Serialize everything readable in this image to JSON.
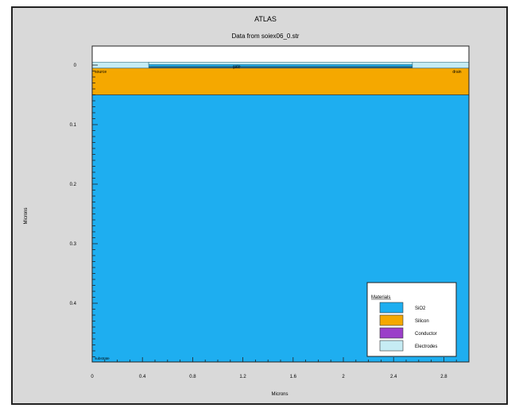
{
  "chart_data": {
    "type": "area",
    "title": "ATLAS",
    "subtitle": "Data from soiex06_0.str",
    "xlabel": "Microns",
    "ylabel": "Microns",
    "xlim": [
      0,
      3.0
    ],
    "ylim": [
      0,
      0.5
    ],
    "x_ticks": [
      0,
      0.4,
      0.8,
      1.2,
      1.6,
      2,
      2.4,
      2.8
    ],
    "x_tick_labels": [
      "0",
      "0.4",
      "0.8",
      "1.2",
      "1.6",
      "2",
      "2.4",
      "2.8"
    ],
    "y_ticks": [
      0,
      0.1,
      0.2,
      0.3,
      0.4
    ],
    "y_tick_labels": [
      "0",
      "0.1",
      "0.2",
      "0.3",
      "0.4"
    ],
    "y_inverted": true,
    "grid": false,
    "colors": {
      "SiO2": "#1eaef0",
      "Silicon": "#f5a800",
      "Conductor": "#9b3fc9",
      "Electrodes": "#c6ecf4",
      "background": "#ffffff"
    },
    "regions": [
      {
        "material": "SiO2",
        "x": [
          0,
          3.0
        ],
        "y": [
          -0.002,
          0.005
        ]
      },
      {
        "material": "Silicon",
        "x": [
          0,
          3.0
        ],
        "y": [
          0.005,
          0.05
        ]
      },
      {
        "material": "SiO2",
        "x": [
          0,
          3.0
        ],
        "y": [
          0.05,
          0.5
        ]
      }
    ],
    "electrodes": [
      {
        "name": "source",
        "x": [
          0,
          0.45
        ],
        "y": [
          -0.005,
          0.005
        ]
      },
      {
        "name": "gate",
        "x": [
          0.45,
          2.55
        ],
        "y": [
          -0.005,
          -0.001
        ]
      },
      {
        "name": "drain",
        "x": [
          2.55,
          3.0
        ],
        "y": [
          -0.005,
          0.005
        ]
      }
    ],
    "electrode_labels": [
      "source",
      "gate",
      "drain"
    ],
    "substrate_label": "substrate",
    "legend": {
      "title": "Materials",
      "position": "bottom-right",
      "entries": [
        "SiO2",
        "Silicon",
        "Conductor",
        "Electrodes"
      ]
    }
  }
}
